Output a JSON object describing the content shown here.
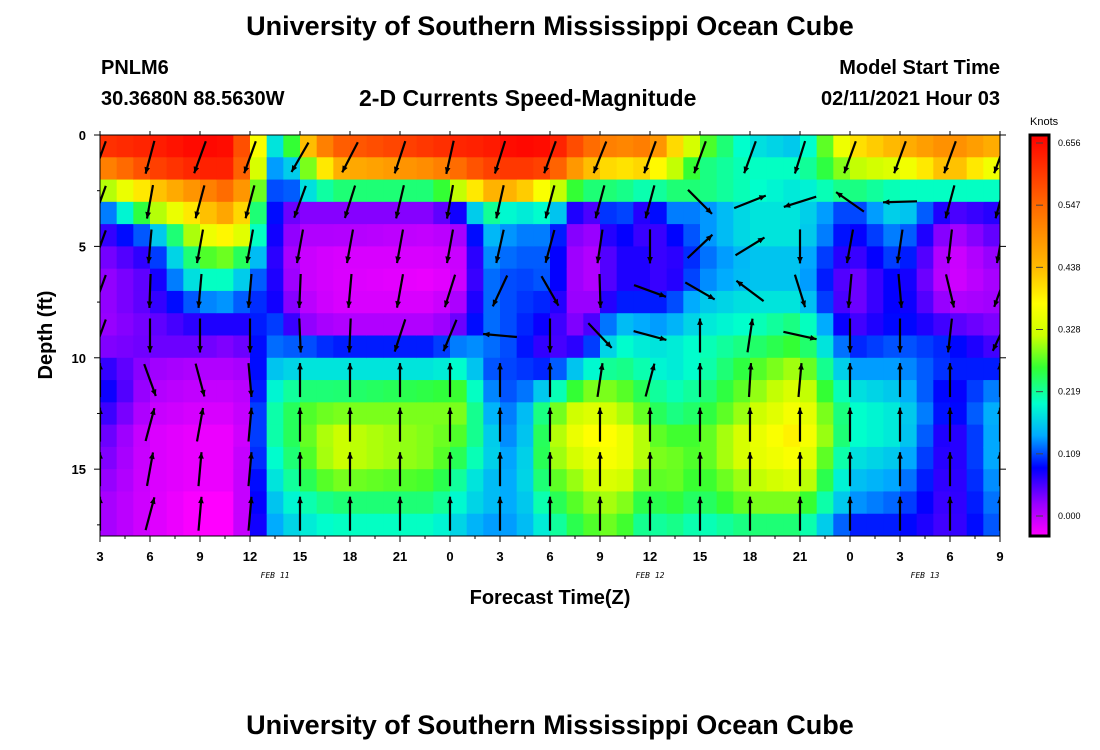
{
  "header": {
    "title_top": "University of Southern Mississippi Ocean Cube",
    "title_bottom": "University of Southern Mississippi Ocean Cube",
    "station": "PNLM6",
    "coords": "30.3680N 88.5630W",
    "subtitle": "2-D Currents Speed-Magnitude",
    "model_label": "Model Start Time",
    "model_time": "02/11/2021 Hour 03"
  },
  "chart_data": {
    "type": "heatmap",
    "title": "2-D Currents Speed-Magnitude",
    "xlabel": "Forecast Time(Z)",
    "ylabel": "Depth (ft)",
    "x_ticks": [
      "3",
      "6",
      "9",
      "12",
      "15",
      "18",
      "21",
      "0",
      "3",
      "6",
      "9",
      "12",
      "15",
      "18",
      "21",
      "0",
      "3",
      "6",
      "9"
    ],
    "x_range_hours": [
      0,
      54
    ],
    "date_labels": [
      {
        "text": "FEB 11",
        "hour": 10.5
      },
      {
        "text": "FEB 12",
        "hour": 33
      },
      {
        "text": "FEB 13",
        "hour": 49.5
      }
    ],
    "y_ticks": [
      0,
      5,
      10,
      15
    ],
    "y_range": [
      0,
      18
    ],
    "colorbar": {
      "unit": "Knots",
      "ticks": [
        "0.656",
        "0.547",
        "0.438",
        "0.328",
        "0.219",
        "0.109",
        "0.000"
      ],
      "range": [
        0,
        0.656
      ]
    },
    "depth_levels_ft": [
      0.5,
      1.5,
      2.5,
      3.5,
      4.5,
      5.5,
      6.5,
      7.5,
      8.5,
      9.5,
      10.5,
      11.5,
      12.5,
      13.5,
      14.5,
      15.5,
      16.5,
      17.5
    ],
    "time_step_hours": 1,
    "speed_knots_keyframes": [
      {
        "hour": 0,
        "profile": [
          0.6,
          0.5,
          0.3,
          0.12,
          0.08,
          0.06,
          0.05,
          0.05,
          0.05,
          0.06,
          0.1,
          0.12,
          0.1,
          0.08,
          0.07,
          0.06,
          0.05,
          0.05
        ]
      },
      {
        "hour": 3,
        "profile": [
          0.62,
          0.58,
          0.42,
          0.3,
          0.15,
          0.1,
          0.08,
          0.08,
          0.07,
          0.07,
          0.05,
          0.04,
          0.03,
          0.02,
          0.02,
          0.02,
          0.02,
          0.02
        ]
      },
      {
        "hour": 6,
        "profile": [
          0.65,
          0.62,
          0.5,
          0.42,
          0.35,
          0.28,
          0.22,
          0.15,
          0.1,
          0.07,
          0.04,
          0.03,
          0.02,
          0.01,
          0.01,
          0.01,
          0.0,
          0.0
        ]
      },
      {
        "hour": 8,
        "profile": [
          0.64,
          0.62,
          0.55,
          0.48,
          0.4,
          0.3,
          0.22,
          0.16,
          0.1,
          0.06,
          0.04,
          0.03,
          0.02,
          0.01,
          0.01,
          0.01,
          0.0,
          0.0
        ]
      },
      {
        "hour": 9,
        "profile": [
          0.5,
          0.48,
          0.42,
          0.35,
          0.3,
          0.22,
          0.15,
          0.12,
          0.1,
          0.08,
          0.05,
          0.04,
          0.04,
          0.04,
          0.05,
          0.05,
          0.06,
          0.06
        ]
      },
      {
        "hour": 10,
        "profile": [
          0.25,
          0.2,
          0.17,
          0.15,
          0.14,
          0.13,
          0.13,
          0.13,
          0.14,
          0.15,
          0.18,
          0.2,
          0.22,
          0.22,
          0.2,
          0.18,
          0.16,
          0.15
        ]
      },
      {
        "hour": 11,
        "profile": [
          0.15,
          0.12,
          0.1,
          0.08,
          0.07,
          0.06,
          0.07,
          0.08,
          0.12,
          0.14,
          0.18,
          0.22,
          0.24,
          0.24,
          0.23,
          0.22,
          0.2,
          0.18
        ]
      },
      {
        "hour": 12,
        "profile": [
          0.4,
          0.25,
          0.18,
          0.06,
          0.04,
          0.03,
          0.03,
          0.04,
          0.06,
          0.14,
          0.2,
          0.25,
          0.28,
          0.28,
          0.27,
          0.25,
          0.22,
          0.2
        ]
      },
      {
        "hour": 14,
        "profile": [
          0.55,
          0.45,
          0.25,
          0.06,
          0.04,
          0.02,
          0.02,
          0.02,
          0.04,
          0.12,
          0.2,
          0.25,
          0.3,
          0.33,
          0.33,
          0.3,
          0.25,
          0.22
        ]
      },
      {
        "hour": 20,
        "profile": [
          0.6,
          0.5,
          0.25,
          0.06,
          0.03,
          0.02,
          0.01,
          0.02,
          0.04,
          0.12,
          0.2,
          0.27,
          0.3,
          0.3,
          0.3,
          0.28,
          0.25,
          0.22
        ]
      },
      {
        "hour": 22,
        "profile": [
          0.62,
          0.55,
          0.35,
          0.12,
          0.05,
          0.03,
          0.03,
          0.05,
          0.08,
          0.16,
          0.22,
          0.28,
          0.3,
          0.28,
          0.25,
          0.22,
          0.2,
          0.18
        ]
      },
      {
        "hour": 23,
        "profile": [
          0.62,
          0.58,
          0.45,
          0.25,
          0.18,
          0.16,
          0.15,
          0.15,
          0.15,
          0.15,
          0.14,
          0.16,
          0.18,
          0.2,
          0.2,
          0.18,
          0.18,
          0.16
        ]
      },
      {
        "hour": 25,
        "profile": [
          0.65,
          0.6,
          0.45,
          0.2,
          0.15,
          0.14,
          0.13,
          0.13,
          0.13,
          0.13,
          0.13,
          0.13,
          0.14,
          0.14,
          0.15,
          0.16,
          0.16,
          0.16
        ]
      },
      {
        "hour": 27,
        "profile": [
          0.64,
          0.58,
          0.35,
          0.22,
          0.15,
          0.14,
          0.14,
          0.12,
          0.1,
          0.08,
          0.12,
          0.2,
          0.28,
          0.3,
          0.3,
          0.28,
          0.25,
          0.22
        ]
      },
      {
        "hour": 29,
        "profile": [
          0.55,
          0.45,
          0.25,
          0.06,
          0.03,
          0.02,
          0.02,
          0.03,
          0.05,
          0.1,
          0.2,
          0.3,
          0.35,
          0.38,
          0.35,
          0.32,
          0.3,
          0.28
        ]
      },
      {
        "hour": 31,
        "profile": [
          0.5,
          0.4,
          0.25,
          0.15,
          0.12,
          0.1,
          0.1,
          0.12,
          0.18,
          0.22,
          0.25,
          0.3,
          0.33,
          0.38,
          0.38,
          0.35,
          0.32,
          0.3
        ]
      },
      {
        "hour": 33,
        "profile": [
          0.52,
          0.42,
          0.22,
          0.08,
          0.08,
          0.1,
          0.1,
          0.12,
          0.16,
          0.2,
          0.22,
          0.25,
          0.28,
          0.3,
          0.3,
          0.28,
          0.25,
          0.22
        ]
      },
      {
        "hour": 34,
        "profile": [
          0.45,
          0.35,
          0.25,
          0.15,
          0.1,
          0.08,
          0.08,
          0.12,
          0.16,
          0.2,
          0.2,
          0.22,
          0.24,
          0.28,
          0.3,
          0.3,
          0.28,
          0.25
        ]
      },
      {
        "hour": 36,
        "profile": [
          0.3,
          0.25,
          0.25,
          0.15,
          0.15,
          0.14,
          0.15,
          0.18,
          0.2,
          0.22,
          0.22,
          0.24,
          0.26,
          0.28,
          0.28,
          0.27,
          0.25,
          0.22
        ]
      },
      {
        "hour": 39,
        "profile": [
          0.2,
          0.22,
          0.22,
          0.2,
          0.2,
          0.18,
          0.18,
          0.2,
          0.22,
          0.25,
          0.28,
          0.3,
          0.32,
          0.35,
          0.35,
          0.32,
          0.3,
          0.25
        ]
      },
      {
        "hour": 42,
        "profile": [
          0.18,
          0.22,
          0.2,
          0.2,
          0.2,
          0.18,
          0.18,
          0.2,
          0.25,
          0.28,
          0.32,
          0.35,
          0.38,
          0.4,
          0.38,
          0.35,
          0.3,
          0.25
        ]
      },
      {
        "hour": 45,
        "profile": [
          0.4,
          0.32,
          0.25,
          0.12,
          0.1,
          0.08,
          0.06,
          0.06,
          0.08,
          0.12,
          0.16,
          0.2,
          0.22,
          0.22,
          0.2,
          0.18,
          0.16,
          0.12
        ]
      },
      {
        "hour": 48,
        "profile": [
          0.45,
          0.35,
          0.22,
          0.2,
          0.16,
          0.14,
          0.12,
          0.12,
          0.12,
          0.14,
          0.16,
          0.18,
          0.2,
          0.2,
          0.18,
          0.16,
          0.14,
          0.12
        ]
      },
      {
        "hour": 51,
        "profile": [
          0.5,
          0.45,
          0.22,
          0.08,
          0.04,
          0.02,
          0.02,
          0.04,
          0.08,
          0.12,
          0.12,
          0.1,
          0.1,
          0.08,
          0.08,
          0.08,
          0.08,
          0.08
        ]
      },
      {
        "hour": 54,
        "profile": [
          0.45,
          0.35,
          0.22,
          0.1,
          0.08,
          0.06,
          0.05,
          0.05,
          0.06,
          0.08,
          0.12,
          0.16,
          0.18,
          0.18,
          0.18,
          0.17,
          0.16,
          0.15
        ]
      }
    ],
    "vector_depths_ft": [
      1,
      3,
      5,
      7,
      9,
      11,
      13,
      15,
      17
    ],
    "vector_direction_keyframes_deg": [
      {
        "hour": 0,
        "profile": [
          200,
          200,
          200,
          200,
          200,
          0,
          0,
          0,
          0
        ]
      },
      {
        "hour": 3,
        "profile": [
          195,
          190,
          185,
          182,
          180,
          160,
          15,
          10,
          15
        ]
      },
      {
        "hour": 6,
        "profile": [
          200,
          195,
          190,
          185,
          180,
          165,
          10,
          5,
          5
        ]
      },
      {
        "hour": 7,
        "profile": [
          200,
          195,
          190,
          185,
          180,
          170,
          170,
          5,
          5
        ]
      },
      {
        "hour": 9,
        "profile": [
          200,
          195,
          190,
          185,
          180,
          175,
          5,
          5,
          5
        ]
      },
      {
        "hour": 11,
        "profile": [
          205,
          200,
          190,
          180,
          175,
          0,
          0,
          0,
          0
        ]
      },
      {
        "hour": 13,
        "profile": [
          215,
          200,
          190,
          185,
          180,
          0,
          0,
          0,
          0
        ]
      },
      {
        "hour": 17,
        "profile": [
          200,
          195,
          190,
          185,
          185,
          0,
          0,
          0,
          0
        ]
      },
      {
        "hour": 20,
        "profile": [
          195,
          190,
          190,
          200,
          225,
          0,
          0,
          0,
          0
        ]
      },
      {
        "hour": 22,
        "profile": [
          190,
          190,
          190,
          195,
          180,
          0,
          0,
          0,
          0
        ]
      },
      {
        "hour": 23,
        "profile": [
          195,
          190,
          190,
          210,
          190,
          0,
          0,
          0,
          0
        ]
      },
      {
        "hour": 25,
        "profile": [
          200,
          195,
          195,
          200,
          0,
          0,
          0,
          0,
          0
        ]
      },
      {
        "hour": 27,
        "profile": [
          200,
          195,
          195,
          150,
          180,
          0,
          0,
          0,
          0
        ]
      },
      {
        "hour": 29,
        "profile": [
          200,
          195,
          190,
          185,
          195,
          10,
          0,
          0,
          0
        ]
      },
      {
        "hour": 32,
        "profile": [
          205,
          195,
          185,
          165,
          20,
          5,
          0,
          0,
          0
        ]
      },
      {
        "hour": 33,
        "profile": [
          200,
          195,
          180,
          110,
          105,
          15,
          0,
          0,
          0
        ]
      },
      {
        "hour": 35,
        "profile": [
          200,
          195,
          70,
          180,
          0,
          0,
          0,
          0,
          0
        ]
      },
      {
        "hour": 38,
        "profile": [
          200,
          15,
          0,
          0,
          0,
          0,
          0,
          0,
          0
        ]
      },
      {
        "hour": 41,
        "profile": [
          200,
          175,
          175,
          200,
          25,
          10,
          0,
          0,
          0
        ]
      },
      {
        "hour": 43,
        "profile": [
          195,
          330,
          185,
          125,
          180,
          0,
          0,
          0,
          0
        ]
      },
      {
        "hour": 44,
        "profile": [
          200,
          305,
          190,
          185,
          180,
          0,
          0,
          0,
          0
        ]
      },
      {
        "hour": 47,
        "profile": [
          200,
          305,
          190,
          185,
          180,
          0,
          0,
          0,
          0
        ]
      },
      {
        "hour": 50,
        "profile": [
          200,
          195,
          185,
          155,
          180,
          0,
          0,
          0,
          0
        ]
      },
      {
        "hour": 54,
        "profile": [
          200,
          195,
          190,
          200,
          205,
          0,
          0,
          0,
          0
        ]
      }
    ]
  }
}
